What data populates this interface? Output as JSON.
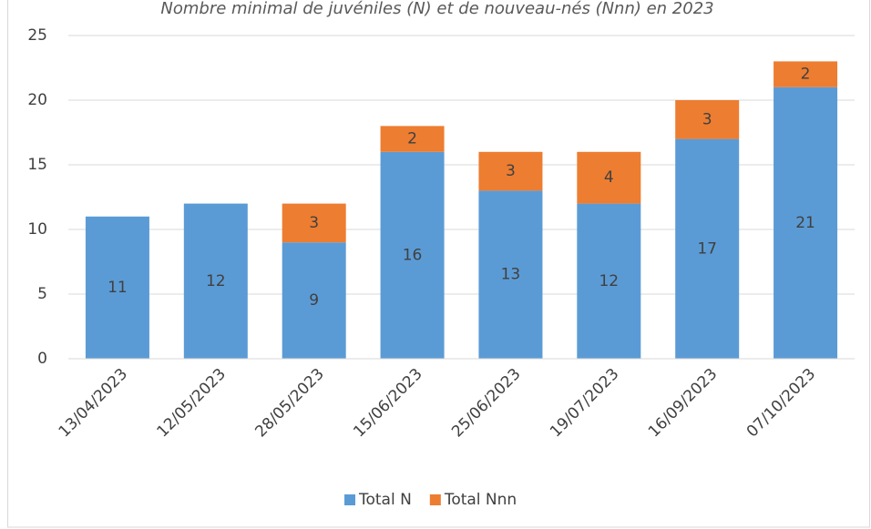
{
  "chart_data": {
    "type": "bar",
    "stacked": true,
    "title": "Nombre minimal de juvéniles (N) et de nouveau-nés (Nnn) en 2023",
    "categories": [
      "13/04/2023",
      "12/05/2023",
      "28/05/2023",
      "15/06/2023",
      "25/06/2023",
      "19/07/2023",
      "16/09/2023",
      "07/10/2023"
    ],
    "series": [
      {
        "name": "Total N",
        "color": "#5b9bd5",
        "values": [
          11,
          12,
          9,
          16,
          13,
          12,
          17,
          21
        ]
      },
      {
        "name": "Total Nnn",
        "color": "#ed7d31",
        "values": [
          null,
          null,
          3,
          2,
          3,
          4,
          3,
          2
        ]
      }
    ],
    "ylim": [
      0,
      25
    ],
    "yticks": [
      0,
      5,
      10,
      15,
      20,
      25
    ],
    "grid": true,
    "legend": "bottom"
  }
}
